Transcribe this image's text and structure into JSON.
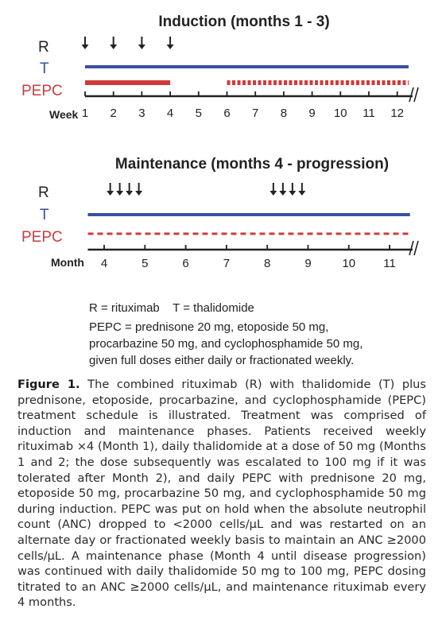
{
  "induction": {
    "title": "Induction (months 1 - 3)",
    "row_labels": {
      "r": "R",
      "t": "T",
      "pepc": "PEPC"
    },
    "axis_label": "Week",
    "ticks": [
      "1",
      "2",
      "3",
      "4",
      "5",
      "6",
      "7",
      "8",
      "9",
      "10",
      "11",
      "12"
    ],
    "r_arrow_weeks": [
      1,
      2,
      3,
      4
    ],
    "t_range": [
      1,
      12.4
    ],
    "pepc_solid_range": [
      1,
      4
    ],
    "pepc_dashed_range": [
      6,
      12.4
    ]
  },
  "maintenance": {
    "title": "Maintenance (months 4 - progression)",
    "row_labels": {
      "r": "R",
      "t": "T",
      "pepc": "PEPC"
    },
    "axis_label": "Month",
    "ticks": [
      "4",
      "5",
      "6",
      "7",
      "8",
      "9",
      "10",
      "11"
    ],
    "r_arrow_groups": [
      4.5,
      8.5
    ],
    "t_range": [
      3.6,
      11.5
    ],
    "pepc_dashed_range": [
      3.6,
      11.5
    ]
  },
  "legend": {
    "line1": "R = rituximab    T = thalidomide",
    "line2": "PEPC = prednisone 20 mg, etoposide 50 mg,",
    "line3": "procarbazine 50 mg, and cyclophosphamide 50 mg,",
    "line4": "given full doses either daily or fractionated weekly."
  },
  "colors": {
    "r": "#222222",
    "t": "#3b4fa3",
    "pepc": "#d23a3a",
    "axis": "#222222"
  },
  "caption": {
    "label": "Figure 1.",
    "text": "The combined rituximab (R) with thalidomide (T) plus prednisone, etoposide, procarbazine, and cyclophospha­mide (PEPC) treatment schedule is illustrated. Treatment was comprised of induction and maintenance phases. Patients received weekly rituximab ×4 (Month 1), daily thalidomide at a dose of 50 mg (Months 1 and 2; the dose subsequently was escalated to 100 mg if it was tolerated after Month 2), and daily PEPC with prednisone 20 mg, etoposide 50 mg, procar­bazine 50 mg, and cyclophosphamide 50 mg during induc­tion. PEPC was put on hold when the absolute neutrophil count (ANC) dropped to <2000 cells/μL and was restarted on an alternate day or fractionated weekly basis to maintain an ANC ≥2000 cells/μL. A maintenance phase (Month 4 until disease progression) was continued with daily thalidomide 50 mg to 100 mg, PEPC dosing titrated to an ANC ≥2000 cells/μL, and maintenance rituximab every 4 months."
  }
}
